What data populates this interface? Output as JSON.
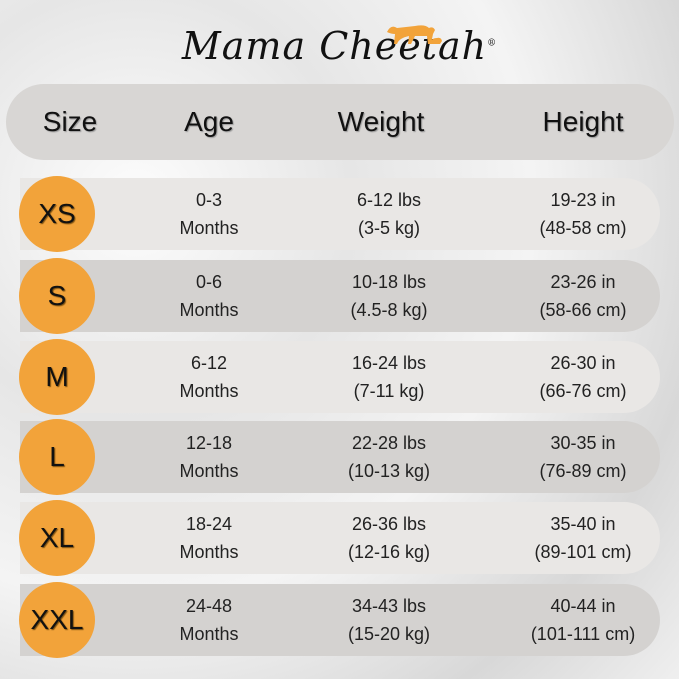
{
  "brand": {
    "logo_text": "MamaCheetah",
    "registered": "®"
  },
  "colors": {
    "badge": "#f2a33a",
    "header": "#d8d6d4",
    "row_light": "#e9e7e5",
    "row_dark": "#d4d2d0"
  },
  "header": {
    "size": "Size",
    "age": "Age",
    "weight": "Weight",
    "height": "Height"
  },
  "rows": [
    {
      "size": "XS",
      "age": [
        "0-3",
        "Months"
      ],
      "weight": [
        "6-12 lbs",
        "(3-5 kg)"
      ],
      "height": [
        "19-23 in",
        "(48-58 cm)"
      ]
    },
    {
      "size": "S",
      "age": [
        "0-6",
        "Months"
      ],
      "weight": [
        "10-18 lbs",
        "(4.5-8 kg)"
      ],
      "height": [
        "23-26 in",
        "(58-66 cm)"
      ]
    },
    {
      "size": "M",
      "age": [
        "6-12",
        "Months"
      ],
      "weight": [
        "16-24 lbs",
        "(7-11 kg)"
      ],
      "height": [
        "26-30 in",
        "(66-76 cm)"
      ]
    },
    {
      "size": "L",
      "age": [
        "12-18",
        "Months"
      ],
      "weight": [
        "22-28 lbs",
        "(10-13 kg)"
      ],
      "height": [
        "30-35 in",
        "(76-89 cm)"
      ]
    },
    {
      "size": "XL",
      "age": [
        "18-24",
        "Months"
      ],
      "weight": [
        "26-36 lbs",
        "(12-16 kg)"
      ],
      "height": [
        "35-40 in",
        "(89-101 cm)"
      ]
    },
    {
      "size": "XXL",
      "age": [
        "24-48",
        "Months"
      ],
      "weight": [
        "34-43 lbs",
        "(15-20 kg)"
      ],
      "height": [
        "40-44 in",
        "(101-111 cm)"
      ]
    }
  ]
}
